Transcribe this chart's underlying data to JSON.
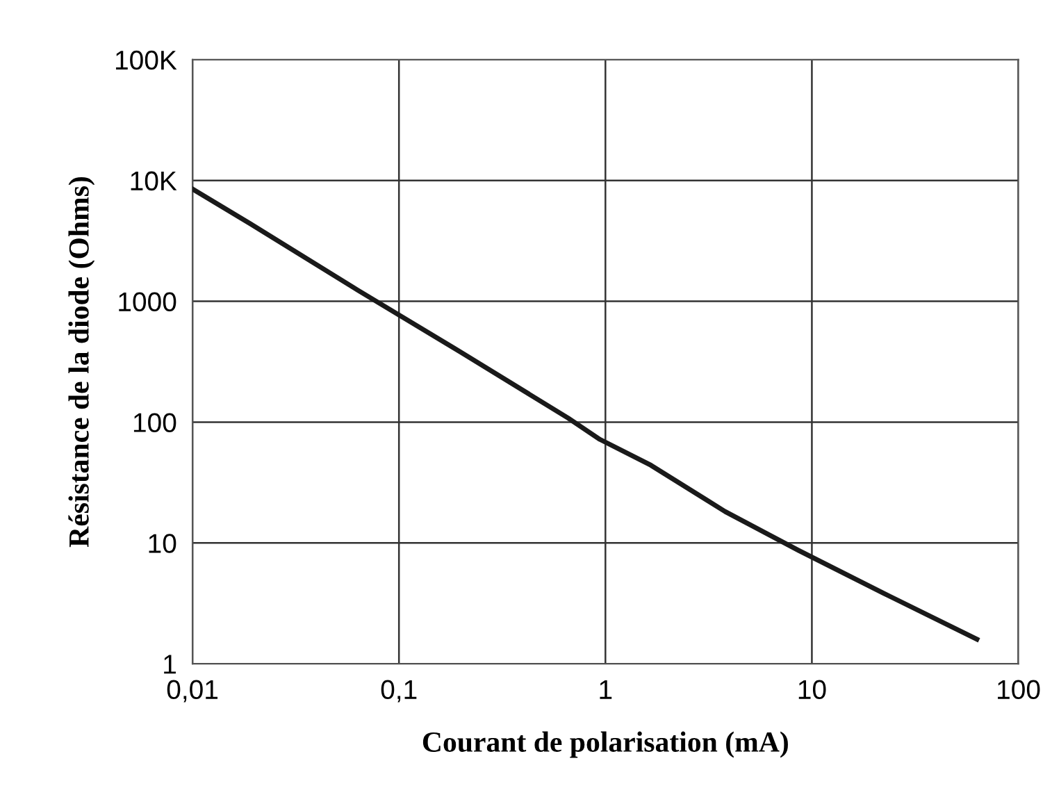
{
  "chart_data": {
    "type": "line",
    "xlabel": "Courant de polarisation (mA)",
    "ylabel": "Résistance de la diode (Ohms)",
    "x": [
      0.01,
      0.019,
      0.063,
      0.185,
      0.66,
      0.94,
      1.66,
      3.8,
      8.6,
      24,
      63
    ],
    "series": [
      {
        "color": "#1a1a1a",
        "values": [
          8500,
          4400,
          1240,
          410,
          108,
          72,
          44,
          18.2,
          8.7,
          3.6,
          1.6
        ]
      }
    ],
    "log": "xy",
    "xlim": [
      0.01,
      100
    ],
    "ylim": [
      1,
      100000
    ],
    "xticks": [
      {
        "value": 0.01,
        "label": "0,01"
      },
      {
        "value": 0.1,
        "label": "0,1"
      },
      1,
      10,
      100
    ],
    "yticks": [
      1,
      10,
      100,
      1000,
      {
        "value": 10000,
        "label": "10K"
      },
      {
        "value": 100000,
        "label": "100K"
      }
    ],
    "grid": true,
    "marker": "none",
    "line_style": "solid"
  }
}
